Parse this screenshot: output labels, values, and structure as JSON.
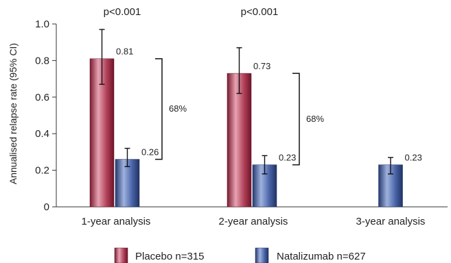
{
  "chart_data": {
    "type": "bar",
    "ylabel": "Annualised relapse rate (95% CI)",
    "ylim": [
      0,
      1.0
    ],
    "yticks": [
      "0",
      "0.2",
      "0.4",
      "0.6",
      "0.8",
      "1.0"
    ],
    "ytick_values": [
      0,
      0.2,
      0.4,
      0.6,
      0.8,
      1.0
    ],
    "categories": [
      "1-year analysis",
      "2-year analysis",
      "3-year analysis"
    ],
    "series": [
      {
        "name": "Placebo n=315",
        "color": "#a8364d",
        "values": [
          0.81,
          0.73,
          null
        ],
        "labels": [
          "0.81",
          "0.73",
          null
        ],
        "ci_low": [
          0.67,
          0.62,
          null
        ],
        "ci_high": [
          0.97,
          0.87,
          null
        ]
      },
      {
        "name": "Natalizumab n=627",
        "color": "#3d5597",
        "values": [
          0.26,
          0.23,
          0.23
        ],
        "labels": [
          "0.26",
          "0.23",
          "0.23"
        ],
        "ci_low": [
          0.22,
          0.18,
          0.18
        ],
        "ci_high": [
          0.32,
          0.28,
          0.27
        ]
      }
    ],
    "significance": [
      "p<0.001",
      "p<0.001",
      null
    ],
    "reductions": [
      "68%",
      "68%",
      null
    ],
    "legend_position": "bottom",
    "grid": false
  }
}
